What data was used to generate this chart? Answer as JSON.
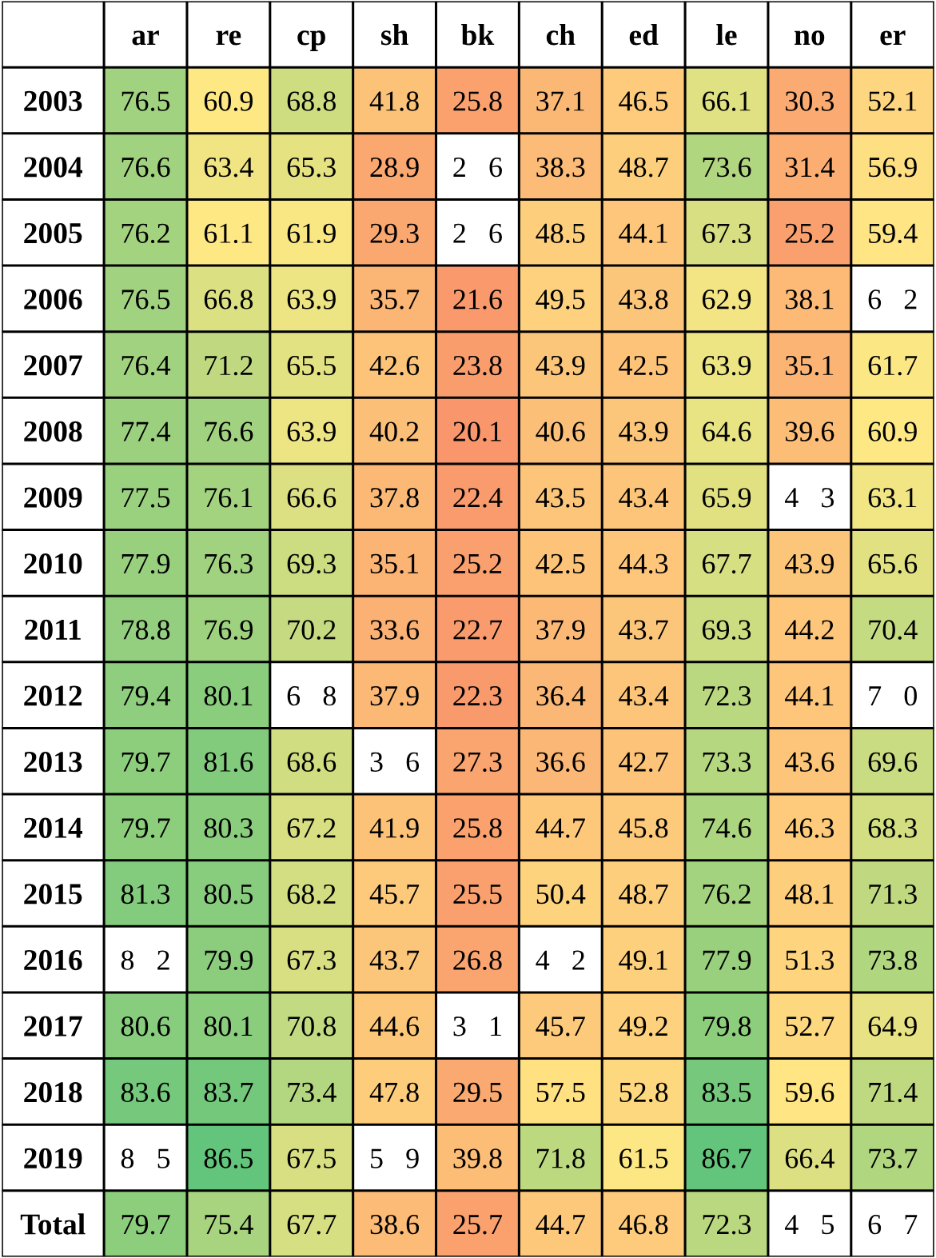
{
  "chart_data": {
    "type": "heatmap",
    "categories": [
      "ar",
      "re",
      "cp",
      "sh",
      "bk",
      "ch",
      "ed",
      "le",
      "no",
      "er"
    ],
    "y_categories": [
      "2003",
      "2004",
      "2005",
      "2006",
      "2007",
      "2008",
      "2009",
      "2010",
      "2011",
      "2012",
      "2013",
      "2014",
      "2015",
      "2016",
      "2017",
      "2018",
      "2019",
      "Total"
    ],
    "colors": [
      "#f9966b",
      "#ffe884",
      "#63c47b"
    ],
    "cells": [
      [
        76.5,
        60.9,
        68.8,
        41.8,
        25.8,
        37.1,
        46.5,
        66.1,
        30.3,
        52.1
      ],
      [
        76.6,
        63.4,
        65.3,
        28.9,
        null,
        38.3,
        48.7,
        73.6,
        31.4,
        56.9
      ],
      [
        76.2,
        61.1,
        61.9,
        29.3,
        null,
        48.5,
        44.1,
        67.3,
        25.2,
        59.4
      ],
      [
        76.5,
        66.8,
        63.9,
        35.7,
        21.6,
        49.5,
        43.8,
        62.9,
        38.1,
        null
      ],
      [
        76.4,
        71.2,
        65.5,
        42.6,
        23.8,
        43.9,
        42.5,
        63.9,
        35.1,
        61.7
      ],
      [
        77.4,
        76.6,
        63.9,
        40.2,
        20.1,
        40.6,
        43.9,
        64.6,
        39.6,
        60.9
      ],
      [
        77.5,
        76.1,
        66.6,
        37.8,
        22.4,
        43.5,
        43.4,
        65.9,
        null,
        63.1
      ],
      [
        77.9,
        76.3,
        69.3,
        35.1,
        25.2,
        42.5,
        44.3,
        67.7,
        43.9,
        65.6
      ],
      [
        78.8,
        76.9,
        70.2,
        33.6,
        22.7,
        37.9,
        43.7,
        69.3,
        44.2,
        70.4
      ],
      [
        79.4,
        80.1,
        null,
        37.9,
        22.3,
        36.4,
        43.4,
        72.3,
        44.1,
        null
      ],
      [
        79.7,
        81.6,
        68.6,
        null,
        27.3,
        36.6,
        42.7,
        73.3,
        43.6,
        69.6
      ],
      [
        79.7,
        80.3,
        67.2,
        41.9,
        25.8,
        44.7,
        45.8,
        74.6,
        46.3,
        68.3
      ],
      [
        81.3,
        80.5,
        68.2,
        45.7,
        25.5,
        50.4,
        48.7,
        76.2,
        48.1,
        71.3
      ],
      [
        null,
        79.9,
        67.3,
        43.7,
        26.8,
        null,
        49.1,
        77.9,
        51.3,
        73.8
      ],
      [
        80.6,
        80.1,
        70.8,
        44.6,
        null,
        45.7,
        49.2,
        79.8,
        52.7,
        64.9
      ],
      [
        83.6,
        83.7,
        73.4,
        47.8,
        29.5,
        57.5,
        52.8,
        83.5,
        59.6,
        71.4
      ],
      [
        null,
        86.5,
        67.5,
        null,
        39.8,
        71.8,
        61.5,
        86.7,
        66.4,
        73.7
      ],
      [
        79.7,
        75.4,
        67.7,
        38.6,
        25.7,
        44.7,
        46.8,
        72.3,
        null,
        null
      ]
    ],
    "cell_labels": [
      [
        "76.5",
        "60.9",
        "68.8",
        "41.8",
        "25.8",
        "37.1",
        "46.5",
        "66.1",
        "30.3",
        "52.1"
      ],
      [
        "76.6",
        "63.4",
        "65.3",
        "28.9",
        "2   6",
        "38.3",
        "48.7",
        "73.6",
        "31.4",
        "56.9"
      ],
      [
        "76.2",
        "61.1",
        "61.9",
        "29.3",
        "2   6",
        "48.5",
        "44.1",
        "67.3",
        "25.2",
        "59.4"
      ],
      [
        "76.5",
        "66.8",
        "63.9",
        "35.7",
        "21.6",
        "49.5",
        "43.8",
        "62.9",
        "38.1",
        "6   2"
      ],
      [
        "76.4",
        "71.2",
        "65.5",
        "42.6",
        "23.8",
        "43.9",
        "42.5",
        "63.9",
        "35.1",
        "61.7"
      ],
      [
        "77.4",
        "76.6",
        "63.9",
        "40.2",
        "20.1",
        "40.6",
        "43.9",
        "64.6",
        "39.6",
        "60.9"
      ],
      [
        "77.5",
        "76.1",
        "66.6",
        "37.8",
        "22.4",
        "43.5",
        "43.4",
        "65.9",
        "4   3",
        "63.1"
      ],
      [
        "77.9",
        "76.3",
        "69.3",
        "35.1",
        "25.2",
        "42.5",
        "44.3",
        "67.7",
        "43.9",
        "65.6"
      ],
      [
        "78.8",
        "76.9",
        "70.2",
        "33.6",
        "22.7",
        "37.9",
        "43.7",
        "69.3",
        "44.2",
        "70.4"
      ],
      [
        "79.4",
        "80.1",
        "6   8",
        "37.9",
        "22.3",
        "36.4",
        "43.4",
        "72.3",
        "44.1",
        "7   0"
      ],
      [
        "79.7",
        "81.6",
        "68.6",
        "3   6",
        "27.3",
        "36.6",
        "42.7",
        "73.3",
        "43.6",
        "69.6"
      ],
      [
        "79.7",
        "80.3",
        "67.2",
        "41.9",
        "25.8",
        "44.7",
        "45.8",
        "74.6",
        "46.3",
        "68.3"
      ],
      [
        "81.3",
        "80.5",
        "68.2",
        "45.7",
        "25.5",
        "50.4",
        "48.7",
        "76.2",
        "48.1",
        "71.3"
      ],
      [
        "8   2",
        "79.9",
        "67.3",
        "43.7",
        "26.8",
        "4   2",
        "49.1",
        "77.9",
        "51.3",
        "73.8"
      ],
      [
        "80.6",
        "80.1",
        "70.8",
        "44.6",
        "3   1",
        "45.7",
        "49.2",
        "79.8",
        "52.7",
        "64.9"
      ],
      [
        "83.6",
        "83.7",
        "73.4",
        "47.8",
        "29.5",
        "57.5",
        "52.8",
        "83.5",
        "59.6",
        "71.4"
      ],
      [
        "8   5",
        "86.5",
        "67.5",
        "5   9",
        "39.8",
        "71.8",
        "61.5",
        "86.7",
        "66.4",
        "73.7"
      ],
      [
        "79.7",
        "75.4",
        "67.7",
        "38.6",
        "25.7",
        "44.7",
        "46.8",
        "72.3",
        "4   5",
        "6   7"
      ]
    ]
  }
}
